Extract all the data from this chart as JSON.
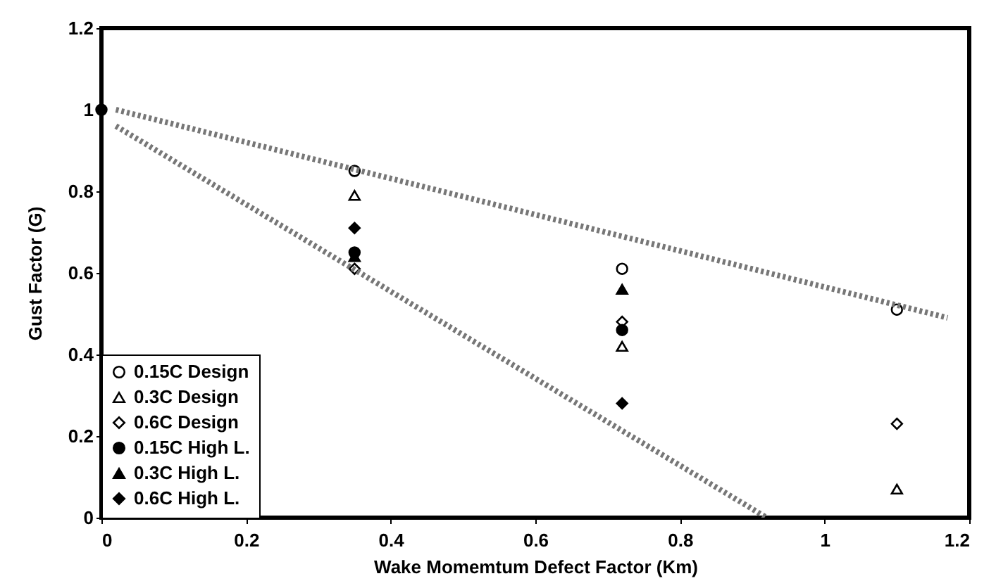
{
  "chart_data": {
    "type": "scatter",
    "xlabel": "Wake Momemtum Defect Factor (Km)",
    "ylabel": "Gust Factor (G)",
    "x": [
      0,
      0.35,
      0.72,
      1.1
    ],
    "xlim": [
      0,
      1.2
    ],
    "xticks": [
      0,
      0.2,
      0.4,
      0.6,
      0.8,
      1,
      1.2
    ],
    "ylim": [
      0,
      1.2
    ],
    "yticks": [
      0,
      0.2,
      0.4,
      0.6,
      0.8,
      1,
      1.2
    ],
    "grid": false,
    "legend": "bottom left",
    "series": [
      {
        "name": "0.15C Design",
        "color": "#000000",
        "marker": "circle",
        "values": [
          null,
          0.85,
          0.61,
          0.51
        ]
      },
      {
        "name": "0.3C Design",
        "color": "#000000",
        "marker": "triangle",
        "values": [
          null,
          0.79,
          0.42,
          0.07
        ]
      },
      {
        "name": "0.6C Design",
        "color": "#000000",
        "marker": "diamond",
        "values": [
          null,
          0.61,
          0.48,
          0.23
        ]
      },
      {
        "name": "0.15C High L.",
        "color": "#000000",
        "marker": "circle",
        "values": [
          1.0,
          0.65,
          0.46,
          null
        ]
      },
      {
        "name": "0.3C High L.",
        "color": "#000000",
        "marker": "triangle",
        "values": [
          null,
          0.64,
          0.56,
          null
        ]
      },
      {
        "name": "0.6C High L.",
        "color": "#000000",
        "marker": "diamond",
        "values": [
          null,
          0.71,
          0.28,
          null
        ]
      },
      {
        "type": "line",
        "color": "#777777",
        "line_style": "dotted",
        "x": [
          0.02,
          1.17
        ],
        "values": [
          1.0,
          0.49
        ]
      },
      {
        "type": "line",
        "color": "#777777",
        "line_style": "dotted",
        "x": [
          0.02,
          0.92
        ],
        "values": [
          0.96,
          0
        ]
      }
    ]
  }
}
